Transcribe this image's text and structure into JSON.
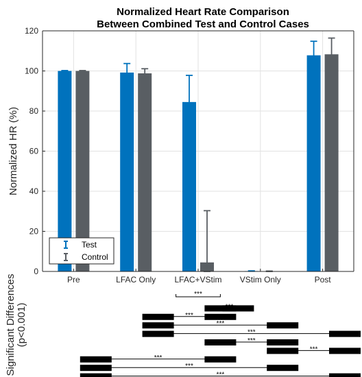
{
  "chart_data": {
    "type": "bar",
    "title": [
      "Normalized Heart Rate Comparison",
      "Between Combined Test and Control Cases"
    ],
    "xlabel": "",
    "ylabel": "Normalized HR (%)",
    "ylim": [
      0,
      120
    ],
    "yticks": [
      0,
      20,
      40,
      60,
      80,
      100,
      120
    ],
    "grid": true,
    "legend_position": "bottom-left",
    "categories": [
      "Pre",
      "LFAC Only",
      "LFAC+VStim",
      "VStim Only",
      "Post"
    ],
    "series": [
      {
        "name": "Test",
        "color": "#0072BD",
        "values": [
          100,
          99.2,
          84.5,
          0.2,
          107.8
        ],
        "error": [
          0.2,
          4.5,
          13.3,
          0.1,
          7.0
        ]
      },
      {
        "name": "Control",
        "color": "#595E63",
        "values": [
          100,
          98.8,
          4.5,
          0.1,
          108.3
        ],
        "error": [
          0.2,
          2.3,
          25.8,
          0.1,
          8.1
        ]
      }
    ],
    "significance": {
      "label_lines": [
        "Significant Differences",
        "(p<0.001)"
      ],
      "marker": "***",
      "comparisons": [
        {
          "a": 4,
          "b": 5,
          "bracket": true
        },
        {
          "a": 5,
          "b": 6
        },
        {
          "a": 3,
          "b": 5
        },
        {
          "a": 3,
          "b": 7
        },
        {
          "a": 3,
          "b": 9
        },
        {
          "a": 5,
          "b": 7
        },
        {
          "a": 7,
          "b": 9
        },
        {
          "a": 1,
          "b": 5
        },
        {
          "a": 1,
          "b": 7
        },
        {
          "a": 1,
          "b": 9
        }
      ]
    }
  }
}
